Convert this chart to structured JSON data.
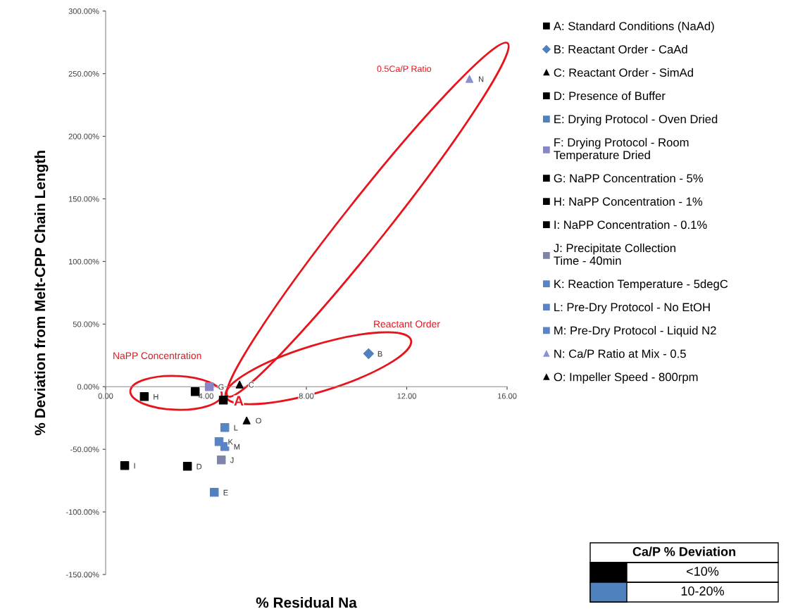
{
  "chart_data": {
    "type": "scatter",
    "xlabel": "% Residual Na",
    "ylabel": "% Deviation from Melt-CPP Chain Length",
    "xlim": [
      0,
      16
    ],
    "xticks": [
      {
        "value": 0,
        "label": "0.00"
      },
      {
        "value": 4,
        "label": "4.00"
      },
      {
        "value": 8,
        "label": "8.00"
      },
      {
        "value": 12,
        "label": "12.00"
      },
      {
        "value": 16,
        "label": "16.00"
      }
    ],
    "ylim": [
      -150,
      300
    ],
    "yticks": [
      {
        "value": -150,
        "label": "-150.00%"
      },
      {
        "value": -100,
        "label": "-100.00%"
      },
      {
        "value": -50,
        "label": "-50.00%"
      },
      {
        "value": 0,
        "label": "0.00%"
      },
      {
        "value": 50,
        "label": "50.00%"
      },
      {
        "value": 100,
        "label": "100.00%"
      },
      {
        "value": 150,
        "label": "150.00%"
      },
      {
        "value": 200,
        "label": "200.00%"
      },
      {
        "value": 250,
        "label": "250.00%"
      },
      {
        "value": 300,
        "label": "300.00%"
      }
    ],
    "grid": false,
    "legend": "right",
    "series": [
      {
        "name": "A: Standard Conditions (NaAd)",
        "color": "#000000",
        "marker": "square",
        "x": [
          4.69
        ],
        "values": [
          -10.7
        ]
      },
      {
        "name": "B: Reactant Order - CaAd",
        "color": "#4f81bd",
        "marker": "diamond",
        "x": [
          10.48
        ],
        "values": [
          26.4
        ]
      },
      {
        "name": "C: Reactant Order - SimAd",
        "color": "#000000",
        "marker": "triangle",
        "x": [
          5.34
        ],
        "values": [
          1.7
        ]
      },
      {
        "name": "D: Presence of Buffer",
        "color": "#000000",
        "marker": "square",
        "x": [
          3.26
        ],
        "values": [
          -63.6
        ]
      },
      {
        "name": "E: Drying Protocol - Oven Dried",
        "color": "#4f81bd",
        "marker": "square",
        "x": [
          4.33
        ],
        "values": [
          -84.4
        ]
      },
      {
        "name": "F: Drying Protocol - Room\nTemperature Dried",
        "color": "#8888c8",
        "marker": "square",
        "x": [
          4.13
        ],
        "values": [
          0
        ]
      },
      {
        "name": "G: NaPP Concentration - 5%",
        "color": "#000000",
        "marker": "square",
        "x": [
          3.57
        ],
        "values": [
          -4.0
        ]
      },
      {
        "name": "H: NaPP Concentration - 1%",
        "color": "#000000",
        "marker": "square",
        "x": [
          1.54
        ],
        "values": [
          -7.9
        ]
      },
      {
        "name": "I: NaPP Concentration - 0.1%",
        "color": "#000000",
        "marker": "square",
        "x": [
          0.76
        ],
        "values": [
          -63.0
        ]
      },
      {
        "name": "J: Precipitate Collection\nTime - 40min",
        "color": "#8085a8",
        "marker": "square",
        "x": [
          4.61
        ],
        "values": [
          -58.5
        ]
      },
      {
        "name": "K: Reaction Temperature - 5degC",
        "color": "#5b84c8",
        "marker": "square",
        "x": [
          4.52
        ],
        "values": [
          -43.9
        ]
      },
      {
        "name": "L: Pre-Dry Protocol - No EtOH",
        "color": "#5b84c8",
        "marker": "square",
        "x": [
          4.75
        ],
        "values": [
          -32.6
        ]
      },
      {
        "name": "M: Pre-Dry Protocol - Liquid N2",
        "color": "#5b84c8",
        "marker": "square",
        "x": [
          4.75
        ],
        "values": [
          -47.8
        ]
      },
      {
        "name": "N: Ca/P Ratio at Mix - 0.5",
        "color": "#8892d0",
        "marker": "triangle",
        "x": [
          14.5
        ],
        "values": [
          245.8
        ]
      },
      {
        "name": "O: Impeller Speed - 800rpm",
        "color": "#000000",
        "marker": "triangle",
        "x": [
          5.62
        ],
        "values": [
          -27.0
        ]
      }
    ],
    "annotations": [
      "0.5Ca/P Ratio",
      "Reactant Order",
      "NaPP Concentration",
      "A",
      {
        "text": "B",
        "x": 10.48,
        "y": 26.4
      },
      {
        "text": "C",
        "x": 5.34,
        "y": 1.7
      },
      {
        "text": "D",
        "x": 3.26,
        "y": -63.6
      },
      {
        "text": "E",
        "x": 4.33,
        "y": -84.4
      },
      {
        "text": "G",
        "x": 4.13,
        "y": 0
      },
      {
        "text": "H",
        "x": 1.54,
        "y": -7.9
      },
      {
        "text": "I",
        "x": 0.76,
        "y": -63.0
      },
      {
        "text": "J",
        "x": 4.61,
        "y": -58.5
      },
      {
        "text": "K",
        "x": 4.52,
        "y": -43.9
      },
      {
        "text": "L",
        "x": 4.75,
        "y": -32.6
      },
      {
        "text": "M",
        "x": 4.75,
        "y": -47.8
      },
      {
        "text": "N",
        "x": 14.5,
        "y": 245.8
      },
      {
        "text": "O",
        "x": 5.62,
        "y": -27.0
      },
      "Ca/P % Deviation",
      "<10%",
      "10-20%"
    ]
  }
}
